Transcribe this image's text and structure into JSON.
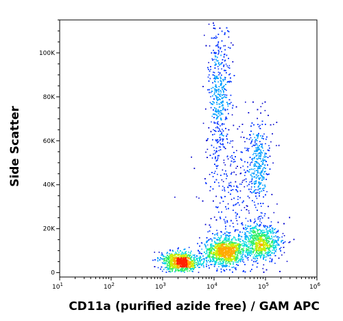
{
  "chart_data": {
    "type": "scatter",
    "style": "flow cytometry density dot plot (pseudocolor)",
    "xlabel": "CD11a (purified azide free) / GAM APC",
    "ylabel": "Side Scatter",
    "x_scale": "log",
    "xlim": [
      10,
      1000000
    ],
    "ylim": [
      -2000,
      115000
    ],
    "x_ticks": [
      {
        "value": 10,
        "base": "10",
        "exp": "1"
      },
      {
        "value": 100,
        "base": "10",
        "exp": "2"
      },
      {
        "value": 1000,
        "base": "10",
        "exp": "3"
      },
      {
        "value": 10000,
        "base": "10",
        "exp": "4"
      },
      {
        "value": 100000,
        "base": "10",
        "exp": "5"
      },
      {
        "value": 1000000,
        "base": "10",
        "exp": "6"
      }
    ],
    "y_ticks": [
      {
        "value": 0,
        "label": "0"
      },
      {
        "value": 20000,
        "label": "20K"
      },
      {
        "value": 40000,
        "label": "40K"
      },
      {
        "value": 60000,
        "label": "60K"
      },
      {
        "value": 80000,
        "label": "80K"
      },
      {
        "value": 100000,
        "label": "100K"
      }
    ],
    "density_colors": [
      "#0000cc",
      "#0033ff",
      "#00a0ff",
      "#00dddd",
      "#33ee66",
      "#ccee00",
      "#ffaa00",
      "#ff2200"
    ],
    "populations": [
      {
        "x_log_center": 3.35,
        "x_log_sd": 0.18,
        "y_center": 5000,
        "y_sd": 2300,
        "weight": 0.22
      },
      {
        "x_log_center": 4.2,
        "x_log_sd": 0.2,
        "y_center": 10000,
        "y_sd": 3200,
        "weight": 0.28
      },
      {
        "x_log_center": 4.9,
        "x_log_sd": 0.18,
        "y_center": 14000,
        "y_sd": 4000,
        "weight": 0.2
      },
      {
        "x_log_center": 4.1,
        "x_log_sd": 0.11,
        "y_center": 82000,
        "y_sd": 16000,
        "weight": 0.13
      },
      {
        "x_log_center": 4.87,
        "x_log_sd": 0.1,
        "y_center": 50000,
        "y_sd": 10000,
        "weight": 0.08
      },
      {
        "x_log_center": 4.4,
        "x_log_sd": 0.32,
        "y_center": 35000,
        "y_sd": 17000,
        "weight": 0.09
      }
    ],
    "grid": false,
    "legend": "none"
  }
}
